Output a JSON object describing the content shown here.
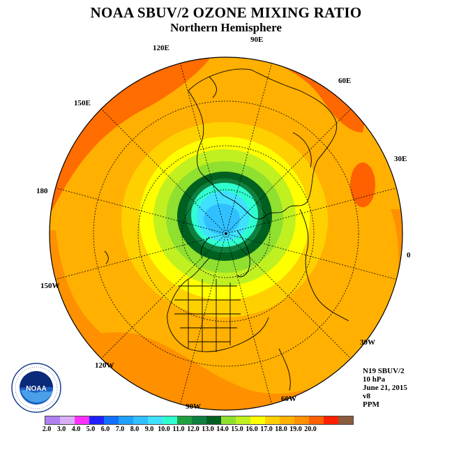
{
  "title": "NOAA SBUV/2 OZONE MIXING RATIO",
  "subtitle": "Northern Hemisphere",
  "longitude_labels": [
    {
      "text": "120E"
    },
    {
      "text": "90E"
    },
    {
      "text": "60E"
    },
    {
      "text": "30E"
    },
    {
      "text": "0"
    },
    {
      "text": "30W"
    },
    {
      "text": "60W"
    },
    {
      "text": "90W"
    },
    {
      "text": "120W"
    },
    {
      "text": "150W"
    },
    {
      "text": "180"
    },
    {
      "text": "150E"
    }
  ],
  "info": {
    "instrument": "N19 SBUV/2",
    "pressure": "10 hPa",
    "date": "June 21, 2015",
    "version": "v8",
    "units": "PPM"
  },
  "logo": {
    "text": "NOAA",
    "icon": "noaa-seal-icon"
  },
  "colorbar": {
    "colors": [
      "#b080f0",
      "#d8b0f8",
      "#ff30ff",
      "#2020ff",
      "#1070ff",
      "#20a0ff",
      "#30c0ff",
      "#40e0ff",
      "#30ffd0",
      "#20a040",
      "#108040",
      "#006020",
      "#90e030",
      "#c0f020",
      "#ffff00",
      "#ffd000",
      "#ffb000",
      "#ff9000",
      "#ff6000",
      "#ff2000",
      "#8c5a3c"
    ],
    "tick_labels": [
      "2.0",
      "3.0",
      "4.0",
      "5.0",
      "6.0",
      "7.0",
      "8.0",
      "9.0",
      "10.0",
      "11.0",
      "12.0",
      "13.0",
      "14.0",
      "15.0",
      "16.0",
      "17.0",
      "18.0",
      "19.0",
      "20.0"
    ]
  }
}
